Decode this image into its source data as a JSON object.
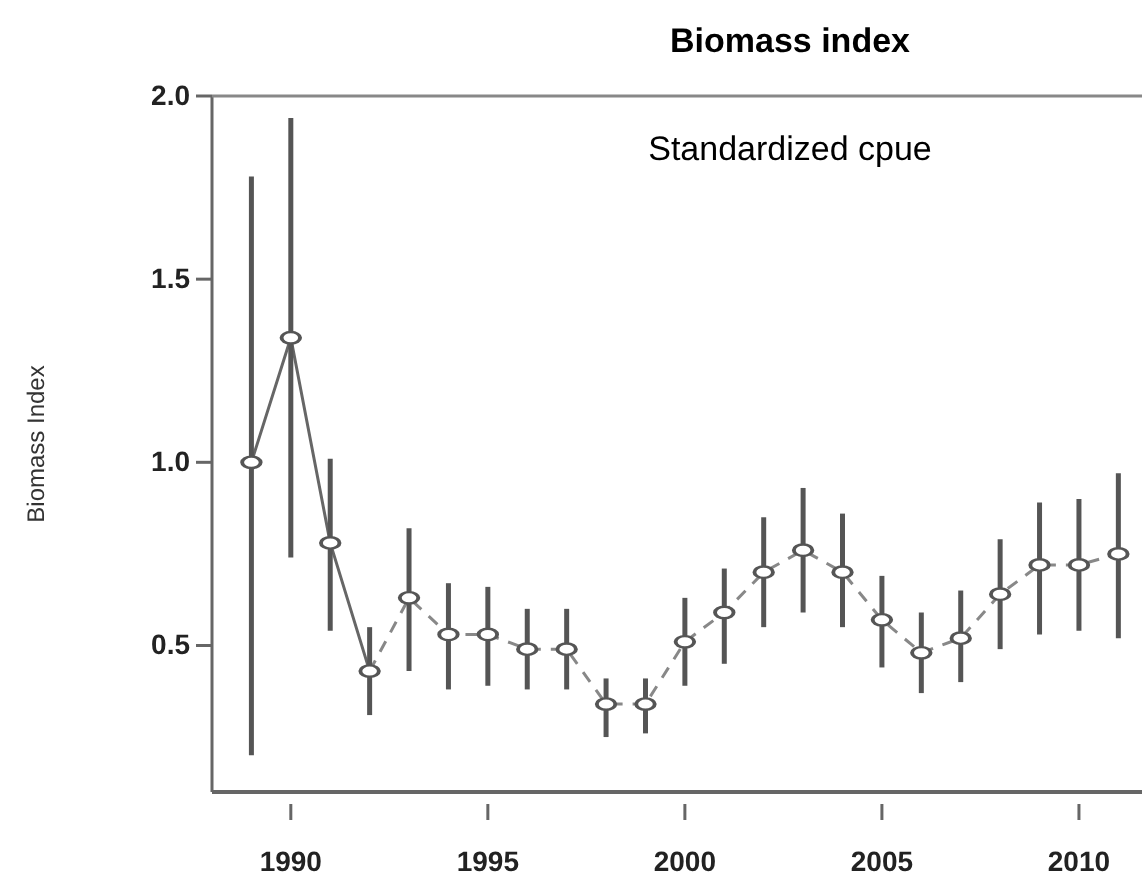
{
  "chart_data": {
    "type": "scatter",
    "title": "Biomass index",
    "subtitle": "Standardized cpue",
    "ylabel": "Biomass Index",
    "xlim": [
      1988,
      2011.6
    ],
    "xticks": [
      1990,
      1995,
      2000,
      2005,
      2010
    ],
    "ylim": [
      0.1,
      2.0
    ],
    "yticks": [
      0.5,
      {
        "value": 1,
        "label": "1.0"
      },
      1.5,
      {
        "value": 2,
        "label": "2.0"
      }
    ],
    "grid": false,
    "marker": "circle",
    "series": [
      {
        "type": "line",
        "line_style": "solid",
        "marker": "none",
        "color": "#666666",
        "x": [
          1989,
          1990,
          1991,
          1992
        ],
        "values": [
          1.0,
          1.34,
          0.78,
          0.43
        ]
      },
      {
        "type": "line",
        "line_style": "dashed",
        "marker": "none",
        "color": "#888888",
        "x": [
          1992,
          1993,
          1994,
          1995,
          1996,
          1997,
          1998,
          1999,
          2000,
          2001,
          2002,
          2003,
          2004,
          2005,
          2006,
          2007,
          2008,
          2009,
          2010,
          2011
        ],
        "values": [
          0.43,
          0.63,
          0.53,
          0.53,
          0.49,
          0.49,
          0.34,
          0.34,
          0.51,
          0.59,
          0.7,
          0.76,
          0.7,
          0.57,
          0.48,
          0.52,
          0.64,
          0.72,
          0.72,
          0.75
        ]
      },
      {
        "color": "#555555",
        "x": [
          1989,
          1990,
          1991,
          1992,
          1993,
          1994,
          1995,
          1996,
          1997,
          1998,
          1999,
          2000,
          2001,
          2002,
          2003,
          2004,
          2005,
          2006,
          2007,
          2008,
          2009,
          2010,
          2011
        ],
        "values": [
          1.0,
          1.34,
          0.78,
          0.43,
          0.63,
          0.53,
          0.53,
          0.49,
          0.49,
          0.34,
          0.34,
          0.51,
          0.59,
          0.7,
          0.76,
          0.7,
          0.57,
          0.48,
          0.52,
          0.64,
          0.72,
          0.72,
          0.75
        ],
        "errors": [
          [
            0.2,
            1.78
          ],
          [
            0.74,
            1.94
          ],
          [
            0.54,
            1.01
          ],
          [
            0.31,
            0.55
          ],
          [
            0.43,
            0.82
          ],
          [
            0.38,
            0.67
          ],
          [
            0.39,
            0.66
          ],
          [
            0.38,
            0.6
          ],
          [
            0.38,
            0.6
          ],
          [
            0.25,
            0.41
          ],
          [
            0.26,
            0.41
          ],
          [
            0.39,
            0.63
          ],
          [
            0.45,
            0.71
          ],
          [
            0.55,
            0.85
          ],
          [
            0.59,
            0.93
          ],
          [
            0.55,
            0.86
          ],
          [
            0.44,
            0.69
          ],
          [
            0.37,
            0.59
          ],
          [
            0.4,
            0.65
          ],
          [
            0.49,
            0.79
          ],
          [
            0.53,
            0.89
          ],
          [
            0.54,
            0.9
          ],
          [
            0.52,
            0.97
          ]
        ]
      }
    ]
  }
}
